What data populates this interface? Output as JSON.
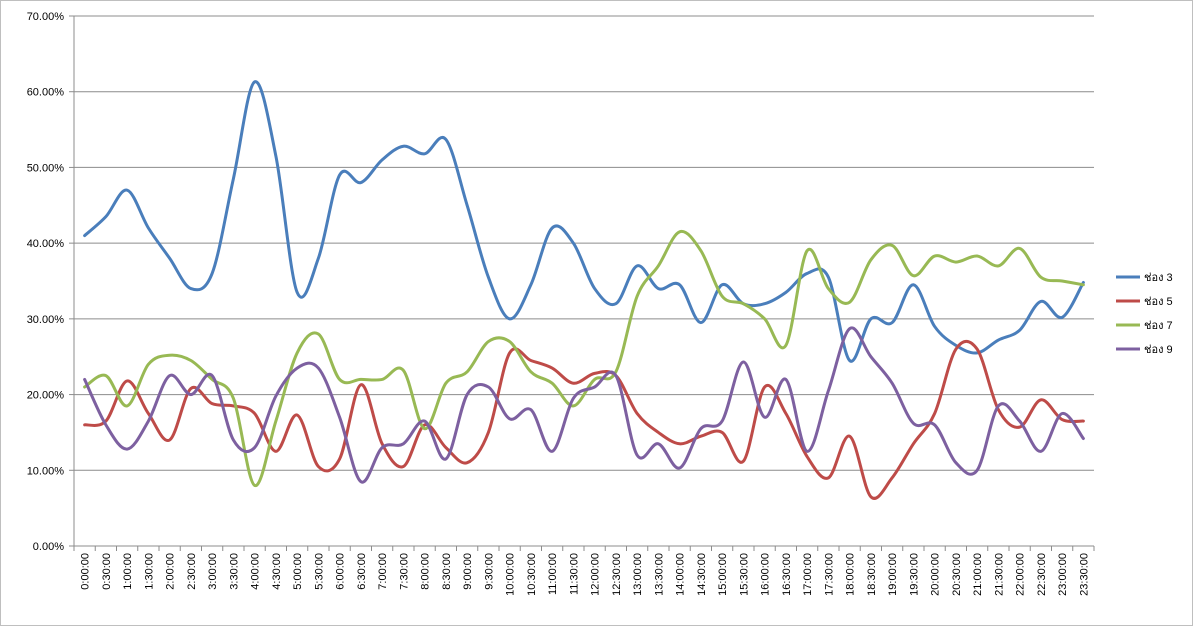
{
  "chart_data": {
    "type": "line",
    "smooth": true,
    "grid": true,
    "legend_position": "right",
    "ylim": [
      0,
      0.7
    ],
    "y_ticks": [
      "0.00%",
      "10.00%",
      "20.00%",
      "30.00%",
      "40.00%",
      "50.00%",
      "60.00%",
      "70.00%"
    ],
    "x": [
      "0:00:00",
      "0:30:00",
      "1:00:00",
      "1:30:00",
      "2:00:00",
      "2:30:00",
      "3:00:00",
      "3:30:00",
      "4:00:00",
      "4:30:00",
      "5:00:00",
      "5:30:00",
      "6:00:00",
      "6:30:00",
      "7:00:00",
      "7:30:00",
      "8:00:00",
      "8:30:00",
      "9:00:00",
      "9:30:00",
      "10:00:00",
      "10:30:00",
      "11:00:00",
      "11:30:00",
      "12:00:00",
      "12:30:00",
      "13:00:00",
      "13:30:00",
      "14:00:00",
      "14:30:00",
      "15:00:00",
      "15:30:00",
      "16:00:00",
      "16:30:00",
      "17:00:00",
      "17:30:00",
      "18:00:00",
      "18:30:00",
      "19:00:00",
      "19:30:00",
      "20:00:00",
      "20:30:00",
      "21:00:00",
      "21:30:00",
      "22:00:00",
      "22:30:00",
      "23:00:00",
      "23:30:00"
    ],
    "series": [
      {
        "name": "ช่อง 3",
        "color": "#4a7ebb",
        "values": [
          0.41,
          0.435,
          0.47,
          0.42,
          0.38,
          0.34,
          0.36,
          0.485,
          0.613,
          0.515,
          0.335,
          0.38,
          0.49,
          0.48,
          0.51,
          0.528,
          0.518,
          0.537,
          0.45,
          0.355,
          0.3,
          0.345,
          0.42,
          0.4,
          0.34,
          0.32,
          0.37,
          0.34,
          0.345,
          0.295,
          0.345,
          0.32,
          0.32,
          0.335,
          0.36,
          0.355,
          0.245,
          0.3,
          0.295,
          0.345,
          0.29,
          0.265,
          0.255,
          0.272,
          0.285,
          0.323,
          0.302,
          0.348
        ]
      },
      {
        "name": "ช่อง 5",
        "color": "#be4b48",
        "values": [
          0.16,
          0.165,
          0.218,
          0.175,
          0.14,
          0.208,
          0.188,
          0.185,
          0.175,
          0.125,
          0.173,
          0.105,
          0.115,
          0.213,
          0.135,
          0.105,
          0.16,
          0.13,
          0.11,
          0.15,
          0.255,
          0.245,
          0.235,
          0.215,
          0.228,
          0.225,
          0.175,
          0.15,
          0.135,
          0.145,
          0.15,
          0.112,
          0.21,
          0.175,
          0.118,
          0.09,
          0.145,
          0.065,
          0.09,
          0.135,
          0.175,
          0.26,
          0.26,
          0.18,
          0.157,
          0.193,
          0.167,
          0.165
        ]
      },
      {
        "name": "ช่อง 7",
        "color": "#98b954",
        "values": [
          0.21,
          0.225,
          0.185,
          0.24,
          0.252,
          0.245,
          0.22,
          0.195,
          0.08,
          0.165,
          0.255,
          0.28,
          0.22,
          0.22,
          0.22,
          0.232,
          0.155,
          0.215,
          0.23,
          0.27,
          0.27,
          0.23,
          0.215,
          0.185,
          0.22,
          0.23,
          0.33,
          0.37,
          0.415,
          0.39,
          0.33,
          0.32,
          0.3,
          0.265,
          0.39,
          0.34,
          0.322,
          0.378,
          0.397,
          0.357,
          0.383,
          0.375,
          0.383,
          0.37,
          0.393,
          0.355,
          0.35,
          0.345
        ]
      },
      {
        "name": "ช่อง 9",
        "color": "#7d60a0",
        "values": [
          0.22,
          0.16,
          0.128,
          0.165,
          0.225,
          0.2,
          0.225,
          0.14,
          0.13,
          0.198,
          0.235,
          0.235,
          0.17,
          0.085,
          0.13,
          0.135,
          0.165,
          0.115,
          0.2,
          0.21,
          0.168,
          0.18,
          0.125,
          0.195,
          0.21,
          0.225,
          0.12,
          0.135,
          0.103,
          0.155,
          0.165,
          0.243,
          0.17,
          0.22,
          0.125,
          0.205,
          0.287,
          0.25,
          0.215,
          0.162,
          0.16,
          0.11,
          0.1,
          0.185,
          0.165,
          0.125,
          0.175,
          0.142
        ]
      }
    ]
  }
}
